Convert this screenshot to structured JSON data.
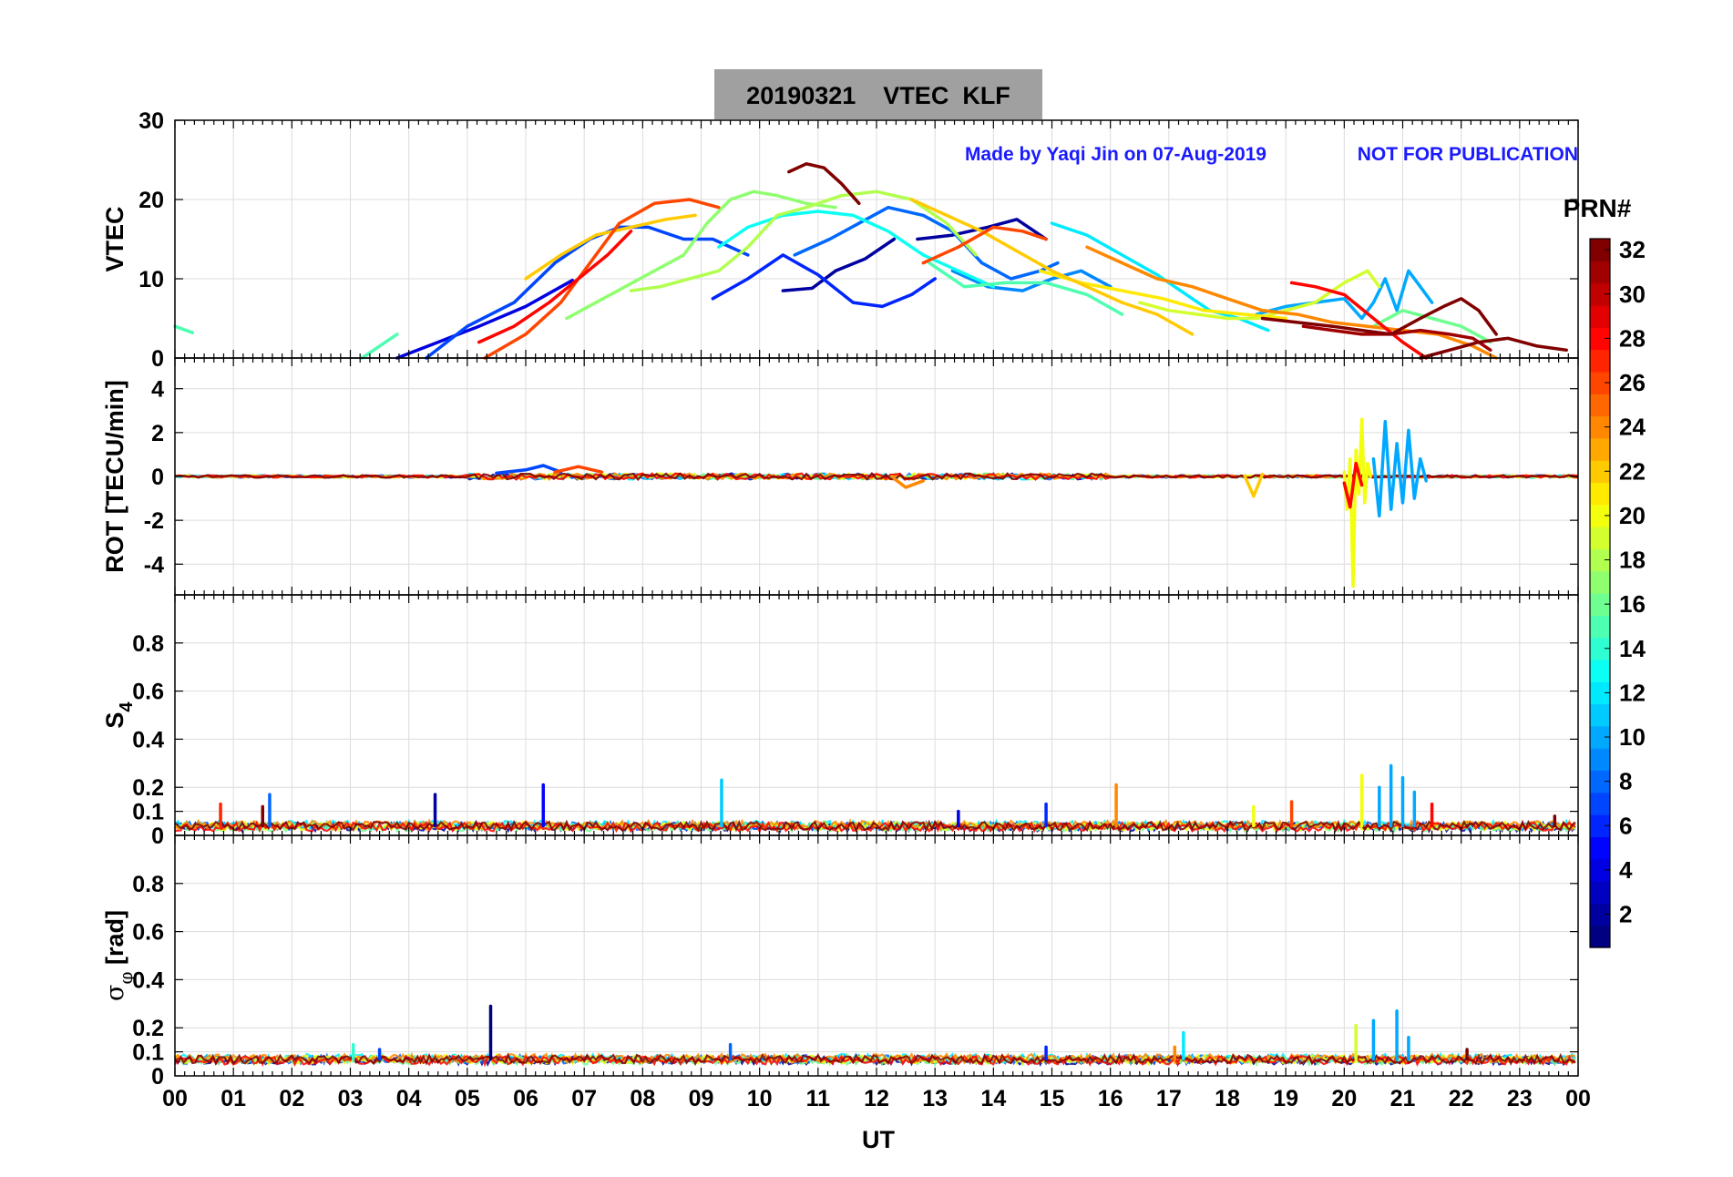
{
  "title": "20190321    VTEC  KLF",
  "credit": "Made by Yaqi Jin on 07-Aug-2019",
  "notice": "NOT FOR PUBLICATION",
  "colors": {
    "title_box": "#a0a0a0",
    "credit_text": "#1a1aff",
    "grid": "#dcdcdc",
    "axis": "#000000"
  },
  "chart_data": {
    "type": "line",
    "xlabel": "UT",
    "xlim": [
      0,
      24
    ],
    "x_ticks": [
      "00",
      "01",
      "02",
      "03",
      "04",
      "05",
      "06",
      "07",
      "08",
      "09",
      "10",
      "11",
      "12",
      "13",
      "14",
      "15",
      "16",
      "17",
      "18",
      "19",
      "20",
      "21",
      "22",
      "23",
      "00"
    ],
    "panels": [
      {
        "id": "vtec",
        "ylabel": "VTEC",
        "ylim": [
          0,
          30
        ],
        "ticks": [
          {
            "v": 0,
            "label": "0"
          },
          {
            "v": 10,
            "label": "10"
          },
          {
            "v": 20,
            "label": "20"
          },
          {
            "v": 30,
            "label": "30"
          }
        ],
        "series": [
          {
            "prn": 2,
            "x": [
              10.4,
              10.9,
              11.3,
              11.8,
              12.3
            ],
            "y": [
              8.5,
              8.8,
              11,
              12.5,
              15
            ]
          },
          {
            "prn": 2,
            "x": [
              12.7,
              13.3,
              13.9,
              14.4,
              14.9
            ],
            "y": [
              15,
              15.5,
              16.5,
              17.5,
              15
            ]
          },
          {
            "prn": 4,
            "x": [
              3.8,
              4.5,
              5.2,
              6.0,
              6.8
            ],
            "y": [
              0,
              2,
              4,
              6.5,
              9.8
            ]
          },
          {
            "prn": 6,
            "x": [
              9.2,
              9.8,
              10.4,
              11.0,
              11.6,
              12.1,
              12.6,
              13.0
            ],
            "y": [
              7.5,
              10,
              13,
              10.5,
              7,
              6.5,
              8,
              10
            ]
          },
          {
            "prn": 7,
            "x": [
              4.3,
              5.0,
              5.8,
              6.5,
              7.1,
              7.6,
              8.1,
              8.7,
              9.2,
              9.8
            ],
            "y": [
              0,
              4,
              7,
              12,
              15,
              16.5,
              16.5,
              15,
              15,
              13
            ]
          },
          {
            "prn": 8,
            "x": [
              10.6,
              11.2,
              11.7,
              12.2,
              12.8,
              13.3,
              13.8,
              14.3,
              14.8,
              15.1
            ],
            "y": [
              13,
              15,
              17,
              19,
              18,
              16,
              12,
              10,
              11,
              12
            ]
          },
          {
            "prn": 9,
            "x": [
              13.3,
              13.9,
              14.5,
              15.0,
              15.5,
              16.0
            ],
            "y": [
              11,
              9,
              8.5,
              10,
              11,
              9
            ]
          },
          {
            "prn": 10,
            "x": [
              18.5,
              19.0,
              19.5,
              20.0,
              20.3,
              20.5,
              20.7,
              20.9,
              21.1,
              21.3,
              21.5
            ],
            "y": [
              5.5,
              6.5,
              7,
              7.5,
              5,
              7,
              10,
              6,
              11,
              9,
              7
            ]
          },
          {
            "prn": 12,
            "x": [
              15.0,
              15.6,
              16.2,
              16.8,
              17.3,
              17.7,
              18.2,
              18.7
            ],
            "y": [
              17,
              15.5,
              13,
              10.5,
              8,
              6,
              5,
              3.5
            ]
          },
          {
            "prn": 13,
            "x": [
              9.3,
              9.8,
              10.4,
              11.0,
              11.6,
              12.2,
              12.8,
              13.4,
              14.0
            ],
            "y": [
              14,
              16.5,
              18,
              18.5,
              18,
              16,
              13,
              11,
              9
            ]
          },
          {
            "prn": 15,
            "x": [
              0.0,
              0.3
            ],
            "y": [
              4,
              3.2
            ]
          },
          {
            "prn": 15,
            "x": [
              3.2,
              3.8
            ],
            "y": [
              0,
              3
            ]
          },
          {
            "prn": 15,
            "x": [
              12.9,
              13.5,
              14.2,
              14.9,
              15.6,
              16.2
            ],
            "y": [
              12,
              9,
              9.5,
              9.5,
              8,
              5.5
            ]
          },
          {
            "prn": 16,
            "x": [
              20.5,
              21.0,
              21.5,
              22.0,
              22.5
            ],
            "y": [
              4,
              6,
              5,
              4,
              2
            ]
          },
          {
            "prn": 17,
            "x": [
              6.7,
              7.2,
              7.7,
              8.2,
              8.7,
              9.1,
              9.5,
              9.9,
              10.3,
              10.8,
              11.3
            ],
            "y": [
              5,
              7,
              9,
              11,
              13,
              17,
              20,
              21,
              20.5,
              19.5,
              19
            ]
          },
          {
            "prn": 18,
            "x": [
              7.8,
              8.3,
              8.8,
              9.3,
              9.8,
              10.3,
              10.8,
              11.4,
              12.0,
              12.6,
              13.2,
              13.7
            ],
            "y": [
              8.5,
              9,
              10,
              11,
              14,
              18,
              19,
              20.5,
              21,
              20,
              17,
              13
            ]
          },
          {
            "prn": 19,
            "x": [
              16.5,
              17.0,
              17.5,
              18.0,
              18.5,
              19.0,
              19.5,
              20.0,
              20.4,
              20.6
            ],
            "y": [
              7,
              6,
              5.5,
              5,
              5,
              6,
              7,
              9.5,
              11,
              9
            ]
          },
          {
            "prn": 21,
            "x": [
              14.8,
              15.5,
              16.2,
              16.9,
              17.6,
              18.3,
              19.0
            ],
            "y": [
              11,
              9.5,
              8.5,
              7.5,
              6,
              5.5,
              5
            ]
          },
          {
            "prn": 22,
            "x": [
              6.0,
              6.6,
              7.2,
              7.8,
              8.4,
              8.9
            ],
            "y": [
              10,
              13,
              15.5,
              16.5,
              17.5,
              18
            ]
          },
          {
            "prn": 22,
            "x": [
              12.6,
              13.2,
              13.8,
              14.4,
              15.0,
              15.6,
              16.2,
              16.8,
              17.4
            ],
            "y": [
              20,
              18,
              16,
              13.5,
              11,
              9,
              7,
              5.5,
              3
            ]
          },
          {
            "prn": 24,
            "x": [
              15.6,
              16.2,
              16.8,
              17.4,
              18.0,
              18.6,
              19.2,
              19.8,
              20.4,
              21.0,
              21.6,
              22.2,
              22.6
            ],
            "y": [
              14,
              12,
              10,
              9,
              7.5,
              6,
              5.5,
              4.5,
              4,
              3.5,
              3,
              1.5,
              0
            ]
          },
          {
            "prn": 26,
            "x": [
              5.3,
              6.0,
              6.6,
              7.1,
              7.6,
              8.2,
              8.8,
              9.3
            ],
            "y": [
              0,
              3,
              7,
              12,
              17,
              19.5,
              20,
              19
            ]
          },
          {
            "prn": 26,
            "x": [
              12.8,
              13.4,
              14.0,
              14.5,
              14.9
            ],
            "y": [
              12,
              14,
              16.5,
              16,
              15
            ]
          },
          {
            "prn": 28,
            "x": [
              5.2,
              5.8,
              6.4,
              6.9,
              7.4,
              7.8
            ],
            "y": [
              2,
              4,
              7,
              10,
              13,
              16
            ]
          },
          {
            "prn": 28,
            "x": [
              19.1,
              19.5,
              20.0,
              20.5,
              21.0,
              21.4
            ],
            "y": [
              9.5,
              9,
              8,
              5,
              2,
              0
            ]
          },
          {
            "prn": 31,
            "x": [
              19.3,
              19.8,
              20.3,
              20.8,
              21.3,
              21.8,
              22.2,
              22.5
            ],
            "y": [
              4,
              3.5,
              3,
              3,
              3.5,
              3,
              2.5,
              1
            ]
          },
          {
            "prn": 32,
            "x": [
              10.5,
              10.8,
              11.1,
              11.4,
              11.7
            ],
            "y": [
              23.5,
              24.5,
              24,
              22,
              19.5
            ]
          },
          {
            "prn": 32,
            "x": [
              18.6,
              19.2,
              19.8,
              20.3,
              20.8,
              21.3,
              21.7,
              22.0,
              22.3,
              22.6
            ],
            "y": [
              5,
              4.5,
              4,
              3.5,
              3,
              5,
              6.5,
              7.5,
              6,
              3
            ]
          },
          {
            "prn": 32,
            "x": [
              21.3,
              21.8,
              22.3,
              22.8,
              23.3,
              23.8
            ],
            "y": [
              0,
              1,
              2,
              2.5,
              1.5,
              1
            ]
          }
        ]
      },
      {
        "id": "rot",
        "ylabel": "ROT [TECU/min]",
        "ylim": [
          -5.4,
          5.4
        ],
        "ticks": [
          {
            "v": -4,
            "label": "-4"
          },
          {
            "v": -2,
            "label": "-2"
          },
          {
            "v": 0,
            "label": "0"
          },
          {
            "v": 2,
            "label": "2"
          },
          {
            "v": 4,
            "label": "4"
          }
        ],
        "series": [
          {
            "prn": 20,
            "x": [
              20.0,
              20.05,
              20.1,
              20.15,
              20.2,
              20.25,
              20.3,
              20.35,
              20.4,
              20.45
            ],
            "y": [
              0.2,
              -1.5,
              0.8,
              -5,
              1.2,
              -0.8,
              2.6,
              -1.2,
              0.6,
              0
            ]
          },
          {
            "prn": 10,
            "x": [
              20.5,
              20.6,
              20.7,
              20.8,
              20.9,
              21.0,
              21.1,
              21.2,
              21.3,
              21.4
            ],
            "y": [
              0.8,
              -1.8,
              2.5,
              -1.5,
              1.5,
              -1.2,
              2.1,
              -1,
              0.8,
              -0.2
            ]
          },
          {
            "prn": 28,
            "x": [
              20.0,
              20.1,
              20.2,
              20.3
            ],
            "y": [
              -0.3,
              -1.4,
              0.6,
              -0.4
            ]
          },
          {
            "prn": 22,
            "x": [
              18.3,
              18.45,
              18.6
            ],
            "y": [
              0,
              -0.9,
              0.1
            ]
          },
          {
            "prn": 24,
            "x": [
              12.3,
              12.5,
              12.8
            ],
            "y": [
              -0.1,
              -0.5,
              -0.2
            ]
          },
          {
            "prn": 7,
            "x": [
              5.5,
              6.0,
              6.3,
              6.6
            ],
            "y": [
              0.15,
              0.3,
              0.5,
              0.2
            ]
          },
          {
            "prn": 26,
            "x": [
              6.5,
              6.9,
              7.3
            ],
            "y": [
              0.2,
              0.45,
              0.2
            ]
          }
        ]
      },
      {
        "id": "s4",
        "ylabel": "S4",
        "ylabel_main": "S",
        "ylabel_sub": "4",
        "ylim": [
          0,
          1.0
        ],
        "ticks": [
          {
            "v": 0,
            "label": "0"
          },
          {
            "v": 0.1,
            "label": "0.1"
          },
          {
            "v": 0.2,
            "label": "0.2"
          },
          {
            "v": 0.4,
            "label": "0.4"
          },
          {
            "v": 0.6,
            "label": "0.6"
          },
          {
            "v": 0.8,
            "label": "0.8"
          }
        ],
        "spikes": [
          {
            "prn": 8,
            "x": 1.62,
            "y": 0.17
          },
          {
            "prn": 27,
            "x": 0.78,
            "y": 0.13
          },
          {
            "prn": 32,
            "x": 1.5,
            "y": 0.12
          },
          {
            "prn": 2,
            "x": 4.45,
            "y": 0.17
          },
          {
            "prn": 5,
            "x": 6.3,
            "y": 0.21
          },
          {
            "prn": 11,
            "x": 9.35,
            "y": 0.23
          },
          {
            "prn": 6,
            "x": 14.9,
            "y": 0.13
          },
          {
            "prn": 24,
            "x": 16.1,
            "y": 0.21
          },
          {
            "prn": 4,
            "x": 13.4,
            "y": 0.1
          },
          {
            "prn": 20,
            "x": 18.45,
            "y": 0.12
          },
          {
            "prn": 26,
            "x": 19.1,
            "y": 0.14
          },
          {
            "prn": 20,
            "x": 20.3,
            "y": 0.25
          },
          {
            "prn": 10,
            "x": 20.6,
            "y": 0.2
          },
          {
            "prn": 10,
            "x": 20.8,
            "y": 0.29
          },
          {
            "prn": 10,
            "x": 21.0,
            "y": 0.24
          },
          {
            "prn": 10,
            "x": 21.2,
            "y": 0.18
          },
          {
            "prn": 28,
            "x": 21.5,
            "y": 0.13
          },
          {
            "prn": 32,
            "x": 23.6,
            "y": 0.08
          }
        ]
      },
      {
        "id": "sigma",
        "ylabel": "σφ [rad]",
        "ylabel_main": "σ",
        "ylabel_sub": "φ",
        "ylabel_unit": "[rad]",
        "ylim": [
          0,
          1.0
        ],
        "ticks": [
          {
            "v": 0,
            "label": "0"
          },
          {
            "v": 0.1,
            "label": "0.1"
          },
          {
            "v": 0.2,
            "label": "0.2"
          },
          {
            "v": 0.4,
            "label": "0.4"
          },
          {
            "v": 0.6,
            "label": "0.6"
          },
          {
            "v": 0.8,
            "label": "0.8"
          }
        ],
        "spikes": [
          {
            "prn": 1,
            "x": 5.4,
            "y": 0.29
          },
          {
            "prn": 14,
            "x": 3.05,
            "y": 0.13
          },
          {
            "prn": 7,
            "x": 3.5,
            "y": 0.11
          },
          {
            "prn": 8,
            "x": 9.5,
            "y": 0.13
          },
          {
            "prn": 6,
            "x": 14.9,
            "y": 0.12
          },
          {
            "prn": 12,
            "x": 17.25,
            "y": 0.18
          },
          {
            "prn": 24,
            "x": 17.1,
            "y": 0.12
          },
          {
            "prn": 19,
            "x": 20.2,
            "y": 0.21
          },
          {
            "prn": 10,
            "x": 20.5,
            "y": 0.23
          },
          {
            "prn": 10,
            "x": 20.9,
            "y": 0.27
          },
          {
            "prn": 10,
            "x": 21.1,
            "y": 0.16
          },
          {
            "prn": 32,
            "x": 22.1,
            "y": 0.11
          }
        ]
      }
    ],
    "colorbar": {
      "label": "PRN#",
      "min": 1,
      "max": 32,
      "ticks": [
        "2",
        "4",
        "6",
        "8",
        "10",
        "12",
        "14",
        "16",
        "18",
        "20",
        "22",
        "24",
        "26",
        "28",
        "30",
        "32"
      ]
    }
  }
}
